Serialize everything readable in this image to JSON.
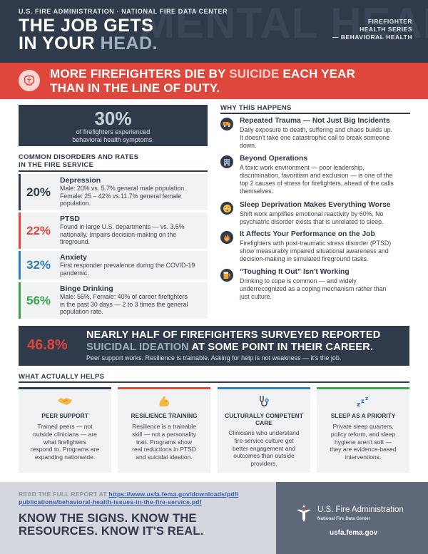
{
  "header": {
    "org": "U.S. FIRE ADMINISTRATION · NATIONAL FIRE DATA CENTER",
    "watermark": "MENTAL HEALTH",
    "title_line1": "THE JOB GETS",
    "title_line2_a": "IN YOUR ",
    "title_line2_b": "HEAD.",
    "series": [
      "FIREFIGHTER",
      "HEALTH SERIES",
      "— BEHAVIORAL HEALTH"
    ]
  },
  "banner": {
    "line1_a": "MORE FIREFIGHTERS DIE BY ",
    "line1_b": "SUICIDE",
    "line1_c": " EACH YEAR",
    "line2": "THAN IN THE LINE OF DUTY.",
    "icon": "brain-icon"
  },
  "stat": {
    "value": "30%",
    "line1": "of firefighters experienced",
    "line2": "behavioral health symptoms."
  },
  "disorders": {
    "title_line1": "COMMON DISORDERS AND RATES",
    "title_line2": "IN THE FIRE SERVICE",
    "items": [
      {
        "pct": "20%",
        "name": "Depression",
        "desc": [
          "Male: 20% vs. 5.7% general male population.",
          "Female: 25 – 42% vs.11.7% general female",
          "population."
        ],
        "color": "#2f3a4a"
      },
      {
        "pct": "22%",
        "name": "PTSD",
        "desc": [
          "Found in large U.S. departments — vs. 3.5%",
          "nationally. Impairs decision-making on the",
          "fireground."
        ],
        "color": "#e0473c"
      },
      {
        "pct": "32%",
        "name": "Anxiety",
        "desc": [
          "First responder prevalence during the COVID-19",
          "pandemic."
        ],
        "color": "#2e7fc1"
      },
      {
        "pct": "56%",
        "name": "Binge Drinking",
        "desc": [
          "Male: 56%, Female: 40% of career firefighters",
          "in the past 30 days — 2 to 3 times the general",
          "population rate."
        ],
        "color": "#3aa54a"
      }
    ]
  },
  "why": {
    "title": "WHY THIS HAPPENS",
    "items": [
      {
        "title": "Repeated Trauma — Not Just Big Incidents",
        "desc": [
          "Daily exposure to death, suffering and chaos builds up.",
          "It doesn't take one catastrophic call to break someone",
          "down."
        ],
        "icon": "ambulance-icon"
      },
      {
        "title": "Beyond Operations",
        "desc": [
          "A toxic work environment — poor leadership,",
          "discrimination, favoritism and exclusion — is one of the",
          "top 2 causes of stress for firefighters, ahead of the calls",
          "themselves."
        ],
        "icon": "building-icon"
      },
      {
        "title": "Sleep Deprivation Makes Everything Worse",
        "desc": [
          "Shift work amplifies emotional reactivity by 60%. No",
          "psychiatric disorder exists that is unrelated to sleep."
        ],
        "icon": "sleepy-face-icon"
      },
      {
        "title": "It Affects Your Performance on the Job",
        "desc": [
          "Firefighters with post-traumatic stress disorder (PTSD)",
          "show measurably impaired situational awareness and",
          "decision-making in simulated fireground tasks."
        ],
        "icon": "flame-icon"
      },
      {
        "title": "“Toughing It Out” Isn't Working",
        "desc": [
          "Drinking to cope is common — and widely",
          "underrecognized as a coping mechanism rather than",
          "just culture."
        ],
        "icon": "beer-mug-icon"
      }
    ]
  },
  "half": {
    "pct": "46.8%",
    "line1": "NEARLY HALF OF FIREFIGHTERS SURVEYED REPORTED",
    "line2_a": "SUICIDAL IDEATION",
    "line2_b": " AT SOME POINT IN THEIR CAREER.",
    "sub": "Peer support works. Resilience is trainable. Asking for help is not weakness — it's the job."
  },
  "helps": {
    "title": "WHAT ACTUALLY HELPS",
    "cards": [
      {
        "title": [
          "PEER SUPPORT"
        ],
        "desc": [
          "Trained peers — not",
          "outside clinicians — are",
          "what firefighters",
          "respond to. Programs are",
          "expanding nationwide."
        ],
        "color": "#2f3a4a",
        "icon": "handshake-icon"
      },
      {
        "title": [
          "RESILIENCE TRAINING"
        ],
        "desc": [
          "Resilience is a trainable",
          "skill — not a personality",
          "trait. Programs show",
          "real reductions in PTSD",
          "and suicidal ideation."
        ],
        "color": "#e0473c",
        "icon": "flexed-arm-icon"
      },
      {
        "title": [
          "CULTURALLY COMPETENT",
          "CARE"
        ],
        "desc": [
          "Clinicians who understand",
          "fire service culture get",
          "better engagement and",
          "outcomes than outside",
          "providers."
        ],
        "color": "#2e7fc1",
        "icon": "stethoscope-icon"
      },
      {
        "title": [
          "SLEEP AS A PRIORITY"
        ],
        "desc": [
          "Private sleep quarters,",
          "policy reform, and sleep",
          "hygiene aren't soft —",
          "they are evidence-based",
          "interventions."
        ],
        "color": "#3aa54a",
        "icon": "zzz-icon"
      }
    ]
  },
  "footer": {
    "read_prefix": "READ THE FULL REPORT AT ",
    "url_line1": "https://www.usfa.fema.gov/downloads/pdf/",
    "url_line2": "publications/behavioral-health-issues-in-the-fire-service.pdf",
    "know_line1": "KNOW THE SIGNS. KNOW THE",
    "know_line2": "RESOURCES. KNOW IT'S REAL.",
    "org_name": "U.S. Fire Administration",
    "org_sub": "National Fire Data Center",
    "site": "usfa.fema.gov"
  }
}
